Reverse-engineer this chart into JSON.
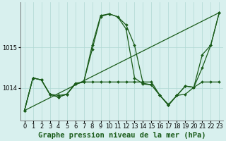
{
  "background_color": "#d8f0ee",
  "grid_color": "#b0d8d4",
  "line_color": "#1a5c1a",
  "xlabel": "Graphe pression niveau de la mer (hPa)",
  "xlabel_fontsize": 7.5,
  "tick_fontsize": 6,
  "ytick_labels": [
    1014,
    1015
  ],
  "ylim": [
    1013.2,
    1016.1
  ],
  "xlim": [
    -0.5,
    23.5
  ],
  "xticks": [
    0,
    1,
    2,
    3,
    4,
    5,
    6,
    7,
    8,
    9,
    10,
    11,
    12,
    13,
    14,
    15,
    16,
    17,
    18,
    19,
    20,
    21,
    22,
    23
  ],
  "series": [
    {
      "x": [
        0,
        1,
        2,
        3,
        4,
        5,
        6,
        7,
        8,
        9,
        10,
        11,
        12,
        13,
        14,
        15,
        16,
        17,
        18,
        19,
        20,
        21,
        22,
        23
      ],
      "y": [
        1013.45,
        1014.25,
        1014.2,
        1013.85,
        1013.78,
        1013.85,
        1014.1,
        1014.15,
        1014.95,
        1015.75,
        1015.82,
        1015.75,
        1015.45,
        1014.25,
        1014.1,
        1014.08,
        1013.82,
        1013.58,
        1013.82,
        1013.85,
        1014.02,
        1014.15,
        1014.15,
        1014.15
      ]
    },
    {
      "x": [
        0,
        1,
        2,
        3,
        4,
        5,
        6,
        7,
        8,
        9,
        10,
        11,
        12,
        13,
        14,
        15,
        16,
        17,
        18,
        19,
        20,
        21,
        22,
        23
      ],
      "y": [
        1013.45,
        1014.25,
        1014.2,
        1013.85,
        1013.78,
        1013.85,
        1014.1,
        1014.15,
        1015.05,
        1015.78,
        1015.82,
        1015.75,
        1015.55,
        1015.05,
        1014.12,
        1014.08,
        1013.82,
        1013.6,
        1013.82,
        1014.05,
        1014.02,
        1014.5,
        1015.05,
        1015.85
      ]
    },
    {
      "x": [
        0,
        23
      ],
      "y": [
        1013.45,
        1015.85
      ]
    },
    {
      "x": [
        0,
        1,
        2,
        3,
        4,
        5,
        6,
        7,
        8,
        9,
        10,
        11,
        12,
        13,
        14,
        15,
        16,
        17,
        18,
        19,
        20,
        21,
        22,
        23
      ],
      "y": [
        1013.45,
        1014.25,
        1014.2,
        1013.85,
        1013.82,
        1013.85,
        1014.12,
        1014.15,
        1014.15,
        1014.15,
        1014.15,
        1014.15,
        1014.15,
        1014.15,
        1014.15,
        1014.15,
        1013.82,
        1013.58,
        1013.82,
        1014.05,
        1014.02,
        1014.82,
        1015.05,
        1015.85
      ]
    }
  ],
  "marker": "D",
  "markersize": 2.0,
  "linewidth": 0.9
}
